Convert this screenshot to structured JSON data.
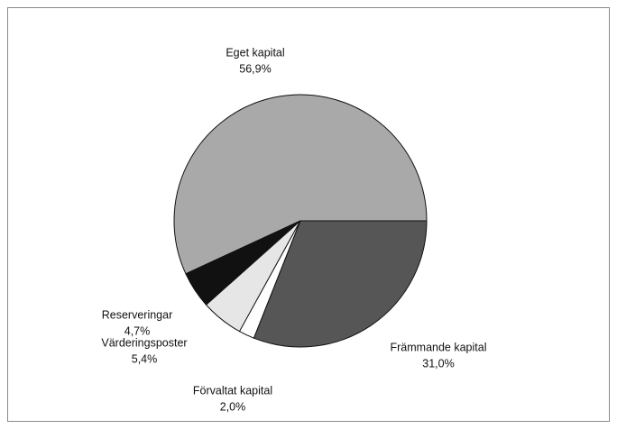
{
  "chart_data": {
    "type": "pie",
    "categories": [
      "Eget kapital",
      "Reserveringar",
      "Värderingsposter",
      "Förvaltat kapital",
      "Främmande kapital"
    ],
    "values": [
      56.9,
      4.7,
      5.4,
      2.0,
      31.0
    ],
    "value_labels": [
      "56,9%",
      "4,7%",
      "5,4%",
      "2,0%",
      "31,0%"
    ],
    "colors": [
      "#a9a9a9",
      "#111111",
      "#e6e6e6",
      "#ffffff",
      "#565656"
    ]
  }
}
